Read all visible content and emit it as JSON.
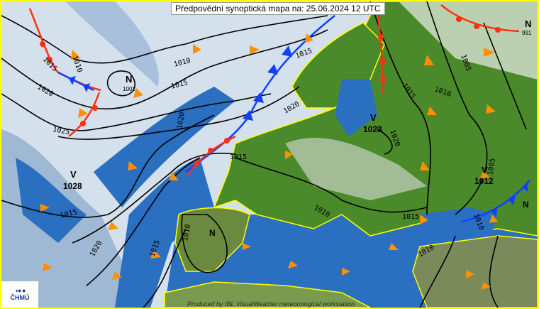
{
  "title": "Předpovědní synoptická mapa na: 25.06.2024 12 UTC",
  "credit": "Produced by IBL VisualWeather meteorological workstation",
  "logo": {
    "text": "ČHMÚ",
    "icon": "chmu-logo-icon"
  },
  "colors": {
    "border": "#ffff00",
    "sea": "#2a6fc0",
    "land": "#4a8a2a",
    "cloud": "#c8d6e6",
    "cold_front": "#1040ff",
    "warm_front": "#ff3010",
    "isobar": "#000000",
    "wind_arrow": "#ff9000"
  },
  "pressure_centers": [
    {
      "type": "N",
      "value": "1001"
    },
    {
      "type": "V",
      "value": "1028"
    },
    {
      "type": "V",
      "value": "1023"
    },
    {
      "type": "N",
      "value": "991"
    },
    {
      "type": "V",
      "value": "1012"
    },
    {
      "type": "N",
      "value": ""
    },
    {
      "type": "N",
      "value": ""
    }
  ],
  "isobar_labels": [
    "1010",
    "1015",
    "1020",
    "1025",
    "1010",
    "1015",
    "1020",
    "1015",
    "1020",
    "1015",
    "1015",
    "1010",
    "1005",
    "1020",
    "1015",
    "1010",
    "1005",
    "1010",
    "1015",
    "1015",
    "1010",
    "1020",
    "1010"
  ]
}
